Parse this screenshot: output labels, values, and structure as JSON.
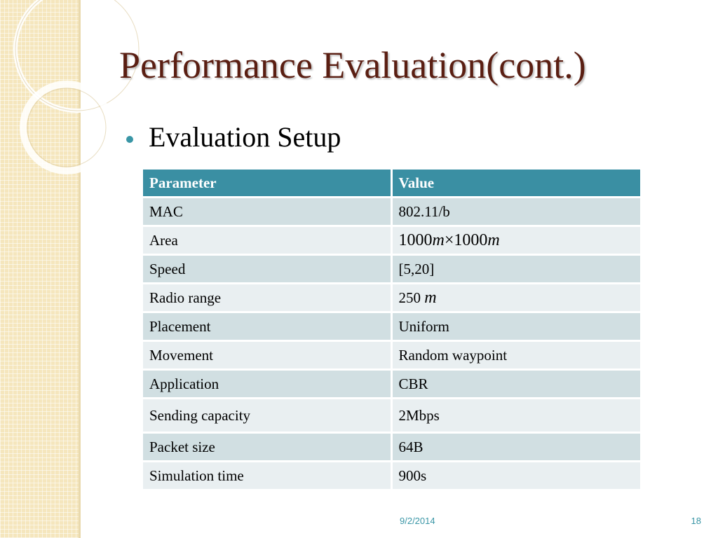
{
  "slide": {
    "title": "Performance Evaluation(cont.)",
    "bullet": "Evaluation Setup"
  },
  "table": {
    "headers": [
      "Parameter",
      "Value"
    ],
    "rows": [
      [
        "MAC",
        "802.11/b"
      ],
      [
        "Area",
        "1000m×1000m"
      ],
      [
        "Speed",
        "[5,20]"
      ],
      [
        "Radio range",
        "250 m"
      ],
      [
        "Placement",
        "Uniform"
      ],
      [
        "Movement",
        "Random waypoint"
      ],
      [
        "Application",
        "CBR"
      ],
      [
        "Sending capacity",
        "2Mbps"
      ],
      [
        "Packet size",
        "64B"
      ],
      [
        "Simulation time",
        "900s"
      ]
    ],
    "area_parts": [
      "1000",
      "m",
      "×",
      "1000",
      "m"
    ],
    "radio_parts": [
      "250 ",
      "m"
    ]
  },
  "footer": {
    "date": "9/2/2014",
    "page": "18"
  },
  "colors": {
    "accent": "#3a96a6",
    "header_bg": "#3a8fa3",
    "title": "#5a1e12",
    "row_odd": "#d1dfe2",
    "row_even": "#e9eff1",
    "strip": "#f5e6bd"
  }
}
